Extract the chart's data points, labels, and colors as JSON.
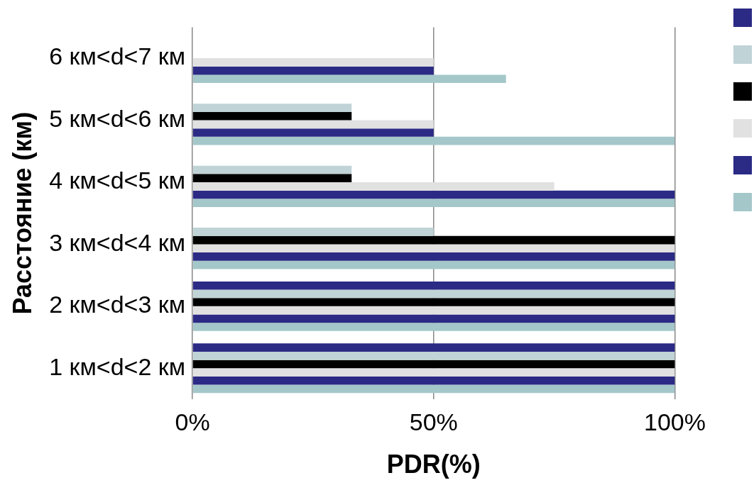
{
  "chart_data": {
    "type": "bar",
    "orientation": "horizontal",
    "xlabel": "PDR(%)",
    "ylabel": "Расстояние (км)",
    "categories": [
      "6 км<d<7 км",
      "5 км<d<6 км",
      "4 км<d<5 км",
      "3 км<d<4 км",
      "2 км<d<3 км",
      "1 км<d<2 км"
    ],
    "series": [
      {
        "color": "#2b2a85",
        "values": [
          null,
          null,
          null,
          null,
          100,
          100
        ]
      },
      {
        "color": "#c0d3d6",
        "values": [
          null,
          33,
          33,
          50,
          100,
          100
        ]
      },
      {
        "color": "#000000",
        "values": [
          null,
          33,
          33,
          100,
          100,
          100
        ]
      },
      {
        "color": "#e1e1e1",
        "values": [
          50,
          50,
          75,
          100,
          100,
          100
        ]
      },
      {
        "color": "#2b2a85",
        "values": [
          50,
          50,
          100,
          100,
          100,
          100
        ]
      },
      {
        "color": "#a4c7ca",
        "values": [
          65,
          100,
          100,
          100,
          100,
          100
        ]
      }
    ],
    "xlim": [
      0,
      100
    ],
    "xticks": [
      {
        "value": 0,
        "label": "0%"
      },
      {
        "value": 50,
        "label": "50%"
      },
      {
        "value": 100,
        "label": "100%"
      }
    ],
    "grid": "x"
  }
}
